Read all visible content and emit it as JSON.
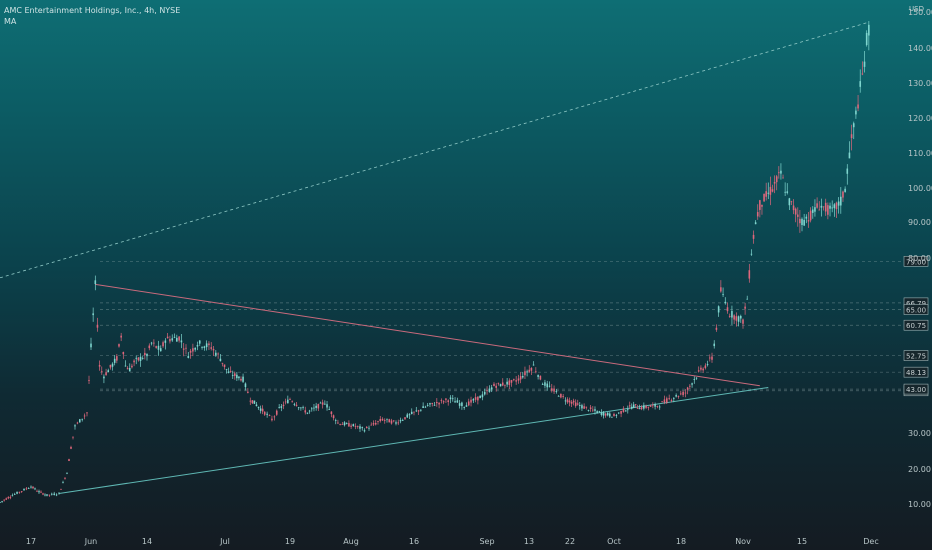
{
  "legend": {
    "symbol_line": "AMC Entertainment Holdings, Inc., 4h, NYSE",
    "indicator": "MA"
  },
  "colors": {
    "candle_up": "#7fd6cf",
    "candle_down": "#e0677c",
    "resistance_line": "#c96a7c",
    "support_line": "#5fb8b4",
    "channel_line": "#8fc9c6"
  },
  "chart_data": {
    "type": "line",
    "title": "AMC Entertainment Holdings, Inc., 4h, NYSE",
    "currency": "USD",
    "xlabel": "",
    "ylabel": "",
    "ylim": [
      0,
      150
    ],
    "x_tick_labels": [
      "17",
      "Jun",
      "14",
      "Jul",
      "19",
      "Aug",
      "16",
      "Sep",
      "13",
      "22",
      "Oct",
      "18",
      "Nov",
      "15",
      "Dec"
    ],
    "y_tick_labels": [
      "10.00",
      "20.00",
      "30.00",
      "80.00",
      "90.00",
      "100.00",
      "110.00",
      "120.00",
      "130.00",
      "140.00",
      "150.00"
    ],
    "series": [
      {
        "x": [
          "May 12",
          "May 14",
          "May 17",
          "May 19",
          "May 21",
          "May 24",
          "May 26",
          "May 27",
          "May 28",
          "May 31",
          "Jun 1",
          "Jun 2",
          "Jun 3",
          "Jun 4",
          "Jun 7",
          "Jun 8",
          "Jun 9",
          "Jun 10",
          "Jun 11",
          "Jun 14",
          "Jun 15",
          "Jun 16",
          "Jun 17",
          "Jun 18",
          "Jun 21",
          "Jun 23",
          "Jun 25",
          "Jun 28",
          "Jun 30",
          "Jul 2",
          "Jul 6",
          "Jul 8",
          "Jul 12",
          "Jul 14",
          "Jul 16",
          "Jul 19",
          "Jul 21",
          "Jul 23",
          "Jul 27",
          "Jul 30",
          "Aug 3",
          "Aug 5",
          "Aug 9",
          "Aug 12",
          "Aug 16",
          "Aug 19",
          "Aug 24",
          "Aug 27",
          "Aug 31",
          "Sep 3",
          "Sep 8",
          "Sep 10",
          "Sep 14",
          "Sep 16",
          "Sep 21",
          "Sep 24",
          "Sep 28",
          "Oct 1",
          "Oct 4",
          "Oct 6",
          "Oct 8",
          "Oct 12",
          "Oct 15",
          "Oct 19",
          "Oct 22",
          "Oct 25",
          "Oct 26",
          "Oct 27",
          "Oct 29",
          "Nov 1",
          "Nov 2",
          "Nov 3",
          "Nov 4",
          "Nov 5",
          "Nov 8",
          "Nov 10",
          "Nov 12",
          "Nov 15",
          "Nov 17",
          "Nov 19",
          "Nov 22",
          "Nov 24",
          "Nov 25",
          "Nov 26",
          "Nov 29",
          "Nov 30",
          "Dec 1"
        ],
        "values": [
          10.5,
          12.5,
          15.0,
          13.5,
          12.5,
          13.0,
          19.0,
          26.0,
          32.0,
          36.0,
          55.0,
          72.0,
          50.0,
          47.0,
          52.0,
          58.0,
          50.0,
          49.0,
          51.0,
          53.0,
          56.0,
          55.0,
          54.0,
          57.0,
          57.5,
          53.0,
          56.0,
          55.0,
          52.0,
          48.0,
          46.0,
          40.0,
          36.0,
          34.0,
          37.0,
          40.0,
          38.0,
          36.0,
          39.0,
          33.0,
          32.0,
          31.0,
          34.0,
          33.0,
          36.0,
          38.0,
          40.0,
          38.0,
          41.0,
          44.0,
          45.0,
          46.0,
          50.0,
          45.0,
          40.0,
          38.0,
          36.0,
          35.0,
          37.0,
          38.0,
          37.5,
          38.0,
          40.0,
          42.0,
          48.0,
          52.0,
          60.0,
          70.0,
          64.0,
          62.0,
          68.0,
          82.0,
          90.0,
          95.0,
          100.0,
          104.0,
          96.0,
          90.0,
          92.0,
          95.0,
          93.0,
          96.0,
          100.0,
          110.0,
          132.0,
          142.0,
          148.0
        ]
      }
    ],
    "price_levels": [
      "79.00",
      "66.79",
      "65.00",
      "60.75",
      "52.75",
      "48.13",
      "42.50",
      "43.00"
    ],
    "grid": false,
    "legend_position": "top-left"
  }
}
